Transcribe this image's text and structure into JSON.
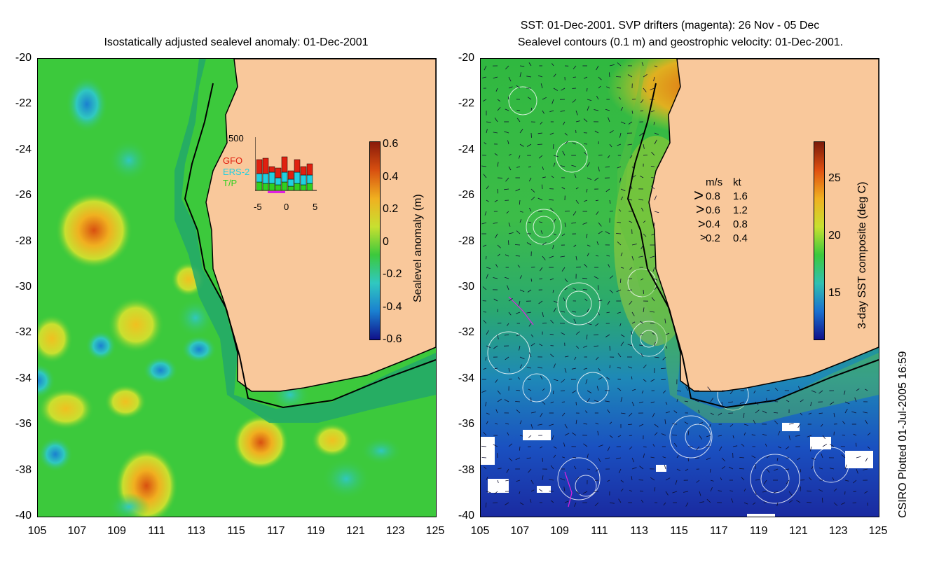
{
  "left_panel": {
    "title": "Isostatically adjusted sealevel anomaly: 01-Dec-2001",
    "colorbar_label": "Sealevel anomaly (m)",
    "colorbar_ticks": [
      "0.6",
      "0.4",
      "0.2",
      "0",
      "-0.2",
      "-0.4",
      "-0.6"
    ],
    "inset": {
      "ymax_label": "500",
      "xticks": [
        "-5",
        "0",
        "5"
      ],
      "satellites": [
        {
          "name": "GFO",
          "color": "#e02010"
        },
        {
          "name": "ERS-2",
          "color": "#20d0e0"
        },
        {
          "name": "T/P",
          "color": "#30d020"
        }
      ]
    }
  },
  "right_panel": {
    "title_line1": "SST: 01-Dec-2001. SVP drifters (magenta): 26 Nov - 05 Dec",
    "title_line2": "Sealevel contours (0.1 m) and geostrophic velocity: 01-Dec-2001.",
    "colorbar_label": "3-day SST composite (deg C)",
    "colorbar_ticks": [
      "25",
      "20",
      "15"
    ],
    "velocity_legend": {
      "header_ms": "m/s",
      "header_kt": "kt",
      "rows": [
        {
          "ms": "0.8",
          "kt": "1.6"
        },
        {
          "ms": "0.6",
          "kt": "1.2"
        },
        {
          "ms": "0.4",
          "kt": "0.8"
        },
        {
          "ms": "0.2",
          "kt": "0.4"
        }
      ]
    }
  },
  "axes": {
    "y_ticks": [
      "-20",
      "-22",
      "-24",
      "-26",
      "-28",
      "-30",
      "-32",
      "-34",
      "-36",
      "-38",
      "-40"
    ],
    "x_ticks": [
      "105",
      "107",
      "109",
      "111",
      "113",
      "115",
      "117",
      "119",
      "121",
      "123",
      "125"
    ]
  },
  "credit": "CSIRO Plotted 01-Jul-2005 16:59",
  "colors": {
    "land": "#f9c89b",
    "ocean_anomaly": "#3cc93c",
    "ocean_sst": "#2fb84a",
    "shelf": "#22a86a"
  }
}
